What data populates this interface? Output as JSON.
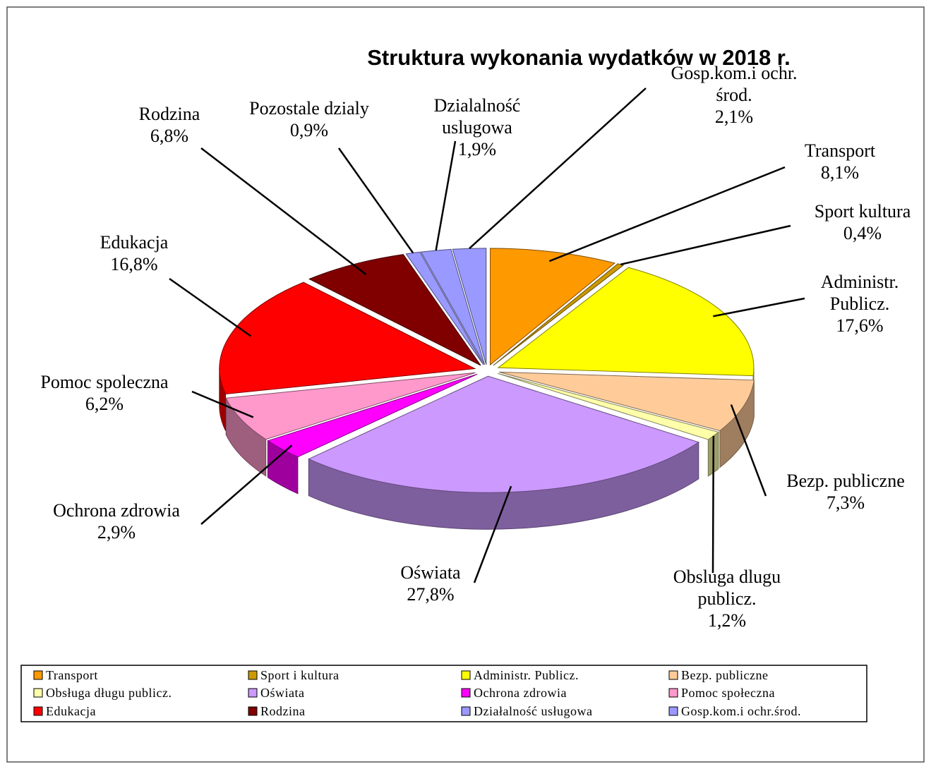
{
  "chart_data": {
    "type": "pie3d",
    "title": "Struktura wykonania wydatków  w  2018 r.",
    "categories": [
      "Transport",
      "Sport kultura",
      "Administr.\nPublicz.",
      "Bezp. publiczne",
      "Obsluga dlugu\npublicz.",
      "Oświata",
      "Ochrona zdrowia",
      "Pomoc spoleczna",
      "Edukacja",
      "Rodzina",
      "Pozostale dzialy",
      "Dzialalność\nuslugowa",
      "Gosp.kom.i ochr.\nśrod."
    ],
    "values": [
      8.1,
      0.4,
      17.6,
      7.3,
      1.2,
      27.8,
      2.9,
      6.2,
      16.8,
      6.8,
      0.9,
      1.9,
      2.1
    ],
    "value_labels": [
      "8,1%",
      "0,4%",
      "17,6%",
      "7,3%",
      "1,2%",
      "27,8%",
      "2,9%",
      "6,2%",
      "16,8%",
      "6,8%",
      "0,9%",
      "1,9%",
      "2,1%"
    ],
    "colors": [
      "#ff9900",
      "#cc9900",
      "#ffff00",
      "#ffcc99",
      "#ffffaa",
      "#cc99ff",
      "#ff00ff",
      "#ff99cc",
      "#ff0000",
      "#800000",
      "#9999ff",
      "#9999ff",
      "#9999ff"
    ],
    "legend": [
      {
        "name": "Transport",
        "color": "#ff9900"
      },
      {
        "name": "Sport i kultura",
        "color": "#cc9900"
      },
      {
        "name": "Administr. Publicz.",
        "color": "#ffff00"
      },
      {
        "name": "Bezp. publiczne",
        "color": "#ffcc99"
      },
      {
        "name": "Obsługa długu publicz.",
        "color": "#ffffaa"
      },
      {
        "name": "Oświata",
        "color": "#cc99ff"
      },
      {
        "name": "Ochrona zdrowia",
        "color": "#ff00ff"
      },
      {
        "name": "Pomoc społeczna",
        "color": "#ff99cc"
      },
      {
        "name": "Edukacja",
        "color": "#ff0000"
      },
      {
        "name": "Rodzina",
        "color": "#800000"
      },
      {
        "name": "Działalność usługowa",
        "color": "#9999ff"
      },
      {
        "name": "Gosp.kom.i ochr.środ.",
        "color": "#9999ff"
      }
    ]
  }
}
